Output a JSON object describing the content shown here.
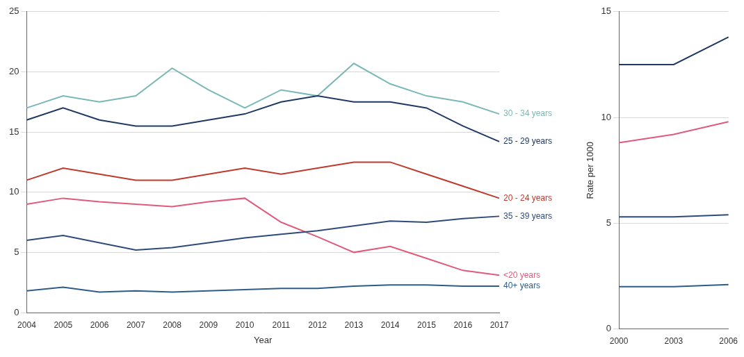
{
  "chart_data": [
    {
      "type": "line",
      "x_label": "Year",
      "categories": [
        "2004",
        "2005",
        "2006",
        "2007",
        "2008",
        "2009",
        "2010",
        "2011",
        "2012",
        "2013",
        "2014",
        "2015",
        "2016",
        "2017"
      ],
      "series": [
        {
          "name": "25 - 29 years",
          "color": "#1f3864",
          "values": [
            16,
            17,
            16,
            15.5,
            15.5,
            16,
            16.5,
            17.5,
            18,
            17.5,
            17.5,
            17,
            15.5,
            14.2
          ]
        },
        {
          "name": "30 - 34 years",
          "color": "#7ab8b8",
          "values": [
            17,
            18,
            17.5,
            18,
            20.3,
            18.5,
            17,
            18.5,
            18,
            20.7,
            19,
            18,
            17.5,
            16.5
          ]
        },
        {
          "name": "20 - 24 years",
          "color": "#c0392b",
          "values": [
            11,
            12,
            11.5,
            11,
            11,
            11.5,
            12,
            11.5,
            12,
            12.5,
            12.5,
            11.5,
            10.5,
            9.5
          ]
        },
        {
          "name": "35 - 39 years",
          "color": "#2e4a7a",
          "values": [
            6,
            6.4,
            5.8,
            5.2,
            5.4,
            5.8,
            6.2,
            6.5,
            6.8,
            7.2,
            7.6,
            7.5,
            7.8,
            8.0
          ]
        },
        {
          "name": "<20 years",
          "color": "#e05a7a",
          "values": [
            9,
            9.5,
            9.2,
            9,
            8.8,
            9.2,
            9.5,
            7.5,
            6.3,
            5,
            5.5,
            4.5,
            3.5,
            3.1
          ]
        },
        {
          "name": "40+ years",
          "color": "#2e5c8a",
          "values": [
            1.8,
            2.1,
            1.7,
            1.8,
            1.7,
            1.8,
            1.9,
            2.0,
            2.0,
            2.2,
            2.3,
            2.3,
            2.2,
            2.2
          ]
        }
      ],
      "ylim": [
        0,
        25
      ],
      "yticks": [
        0,
        5,
        10,
        15,
        20,
        25
      ],
      "grid": true
    },
    {
      "type": "line",
      "y_label": "Rate per 1000",
      "categories": [
        "2000",
        "2003",
        "2006"
      ],
      "series": [
        {
          "color": "#1f3864",
          "values": [
            12.5,
            12.5,
            13.8
          ]
        },
        {
          "color": "#e05a7a",
          "values": [
            8.8,
            9.2,
            9.8
          ]
        },
        {
          "color": "#2e4a7a",
          "values": [
            5.3,
            5.3,
            5.4
          ]
        },
        {
          "color": "#2e5c8a",
          "values": [
            2,
            2,
            2.1
          ]
        }
      ],
      "ylim": [
        0,
        15
      ],
      "yticks": [
        0,
        5,
        10,
        15
      ],
      "grid": true
    }
  ]
}
